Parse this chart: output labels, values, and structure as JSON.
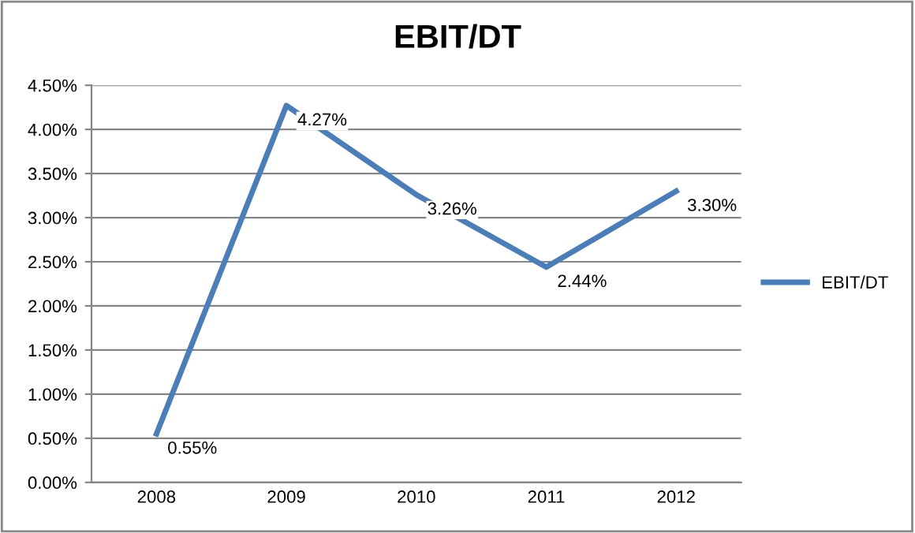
{
  "chart_data": {
    "type": "line",
    "title": "EBIT/DT",
    "categories": [
      "2008",
      "2009",
      "2010",
      "2011",
      "2012"
    ],
    "series": [
      {
        "name": "EBIT/DT",
        "color": "#4a7ebb",
        "values": [
          0.55,
          4.27,
          3.26,
          2.44,
          3.3
        ],
        "value_labels": [
          "0.55%",
          "4.27%",
          "3.26%",
          "2.44%",
          "3.30%"
        ]
      }
    ],
    "ylim": [
      0,
      4.5
    ],
    "yticks": [
      {
        "value": 0,
        "label": "0.00%"
      },
      {
        "value": 0.5,
        "label": "0.50%"
      },
      {
        "value": 1,
        "label": "1.00%"
      },
      {
        "value": 1.5,
        "label": "1.50%"
      },
      {
        "value": 2,
        "label": "2.00%"
      },
      {
        "value": 2.5,
        "label": "2.50%"
      },
      {
        "value": 3,
        "label": "3.00%"
      },
      {
        "value": 3.5,
        "label": "3.50%"
      },
      {
        "value": 4,
        "label": "4.00%"
      },
      {
        "value": 4.5,
        "label": "4.50%"
      }
    ],
    "grid": "y",
    "legend": "right",
    "marker": "none",
    "line_style": "solid"
  }
}
